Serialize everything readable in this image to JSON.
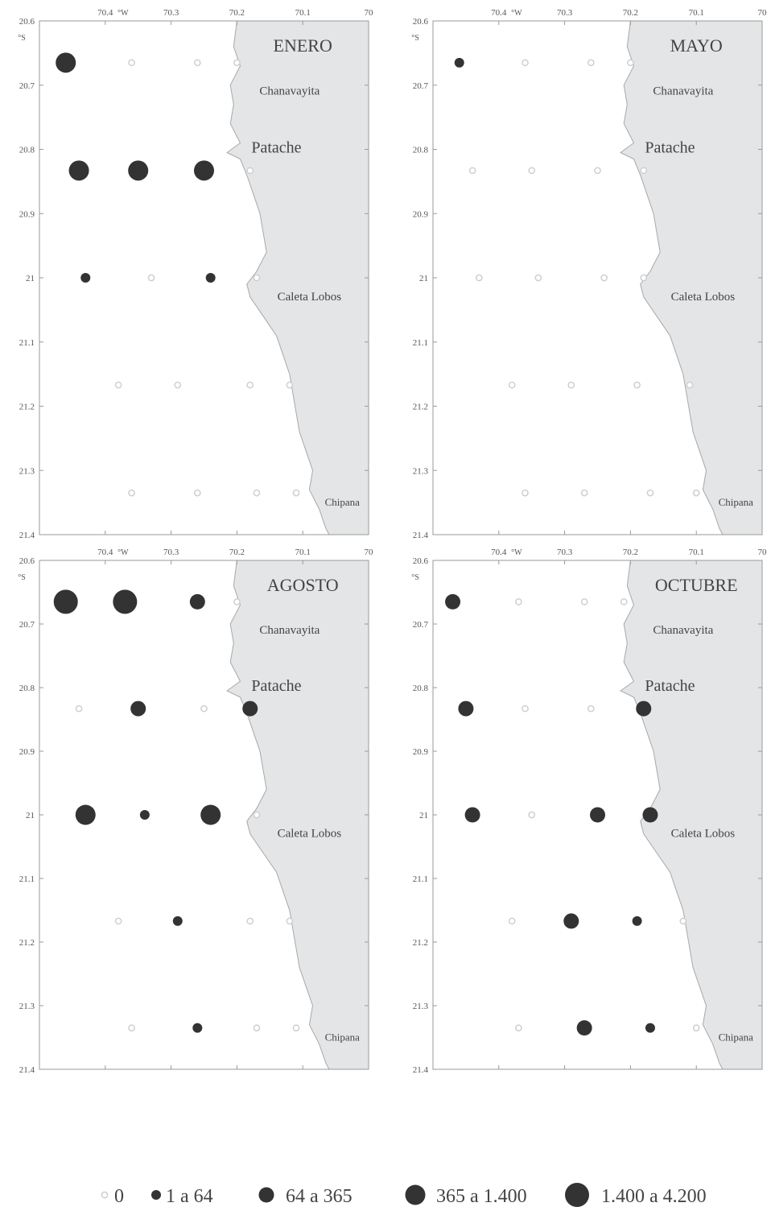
{
  "chart_data": {
    "type": "scatter",
    "description_units": {
      "x": "longitude °W",
      "y": "latitude °S"
    },
    "axes": {
      "x_ticks": [
        "70.4",
        "70.3",
        "70.2",
        "70.1",
        "70"
      ],
      "x_tick_values": [
        70.4,
        70.3,
        70.2,
        70.1,
        70.0
      ],
      "x_unit": "°W",
      "y_ticks": [
        "20.6",
        "20.7",
        "20.8",
        "20.9",
        "21",
        "21.1",
        "21.2",
        "21.3",
        "21.4"
      ],
      "y_tick_values": [
        20.6,
        20.7,
        20.8,
        20.9,
        21.0,
        21.1,
        21.2,
        21.3,
        21.4
      ],
      "y_unit": "°S",
      "xlim": [
        70.5,
        70.0
      ],
      "ylim": [
        20.6,
        21.4
      ]
    },
    "places": [
      {
        "name": "Chanavayita",
        "lon": 70.12,
        "lat": 20.715,
        "size": "normal"
      },
      {
        "name": "Patache",
        "lon": 70.14,
        "lat": 20.805,
        "size": "big"
      },
      {
        "name": "Caleta Lobos",
        "lon": 70.09,
        "lat": 21.035,
        "size": "normal"
      },
      {
        "name": "Chipana",
        "lon": 70.04,
        "lat": 21.355,
        "size": "small"
      }
    ],
    "coastline": [
      [
        70.2,
        20.6
      ],
      [
        70.205,
        20.64
      ],
      [
        70.195,
        20.67
      ],
      [
        70.21,
        20.7
      ],
      [
        70.205,
        20.73
      ],
      [
        70.21,
        20.76
      ],
      [
        70.195,
        20.79
      ],
      [
        70.215,
        20.805
      ],
      [
        70.195,
        20.815
      ],
      [
        70.185,
        20.84
      ],
      [
        70.175,
        20.87
      ],
      [
        70.165,
        20.9
      ],
      [
        70.16,
        20.93
      ],
      [
        70.155,
        20.96
      ],
      [
        70.17,
        20.99
      ],
      [
        70.185,
        21.01
      ],
      [
        70.18,
        21.03
      ],
      [
        70.16,
        21.06
      ],
      [
        70.14,
        21.09
      ],
      [
        70.13,
        21.12
      ],
      [
        70.12,
        21.15
      ],
      [
        70.115,
        21.18
      ],
      [
        70.11,
        21.21
      ],
      [
        70.105,
        21.24
      ],
      [
        70.095,
        21.27
      ],
      [
        70.085,
        21.3
      ],
      [
        70.09,
        21.33
      ],
      [
        70.075,
        21.36
      ],
      [
        70.065,
        21.39
      ],
      [
        70.06,
        21.4
      ]
    ],
    "size_classes": [
      {
        "label": "0",
        "class": 0
      },
      {
        "label": "1 a 64",
        "class": 1
      },
      {
        "label": "64 a 365",
        "class": 2
      },
      {
        "label": "365 a 1.400",
        "class": 3
      },
      {
        "label": "1.400 a 4.200",
        "class": 4
      }
    ],
    "panels": [
      {
        "title": "ENERO",
        "points": [
          {
            "lon": 70.46,
            "lat": 20.665,
            "class": 3
          },
          {
            "lon": 70.36,
            "lat": 20.665,
            "class": 0
          },
          {
            "lon": 70.26,
            "lat": 20.665,
            "class": 0
          },
          {
            "lon": 70.2,
            "lat": 20.665,
            "class": 0
          },
          {
            "lon": 70.44,
            "lat": 20.833,
            "class": 3
          },
          {
            "lon": 70.35,
            "lat": 20.833,
            "class": 3
          },
          {
            "lon": 70.25,
            "lat": 20.833,
            "class": 3
          },
          {
            "lon": 70.18,
            "lat": 20.833,
            "class": 0
          },
          {
            "lon": 70.43,
            "lat": 21.0,
            "class": 1
          },
          {
            "lon": 70.33,
            "lat": 21.0,
            "class": 0
          },
          {
            "lon": 70.24,
            "lat": 21.0,
            "class": 1
          },
          {
            "lon": 70.17,
            "lat": 21.0,
            "class": 0
          },
          {
            "lon": 70.38,
            "lat": 21.167,
            "class": 0
          },
          {
            "lon": 70.29,
            "lat": 21.167,
            "class": 0
          },
          {
            "lon": 70.18,
            "lat": 21.167,
            "class": 0
          },
          {
            "lon": 70.12,
            "lat": 21.167,
            "class": 0
          },
          {
            "lon": 70.36,
            "lat": 21.335,
            "class": 0
          },
          {
            "lon": 70.26,
            "lat": 21.335,
            "class": 0
          },
          {
            "lon": 70.17,
            "lat": 21.335,
            "class": 0
          },
          {
            "lon": 70.11,
            "lat": 21.335,
            "class": 0
          }
        ]
      },
      {
        "title": "MAYO",
        "points": [
          {
            "lon": 70.46,
            "lat": 20.665,
            "class": 1
          },
          {
            "lon": 70.36,
            "lat": 20.665,
            "class": 0
          },
          {
            "lon": 70.26,
            "lat": 20.665,
            "class": 0
          },
          {
            "lon": 70.2,
            "lat": 20.665,
            "class": 0
          },
          {
            "lon": 70.44,
            "lat": 20.833,
            "class": 0
          },
          {
            "lon": 70.35,
            "lat": 20.833,
            "class": 0
          },
          {
            "lon": 70.25,
            "lat": 20.833,
            "class": 0
          },
          {
            "lon": 70.18,
            "lat": 20.833,
            "class": 0
          },
          {
            "lon": 70.43,
            "lat": 21.0,
            "class": 0
          },
          {
            "lon": 70.34,
            "lat": 21.0,
            "class": 0
          },
          {
            "lon": 70.24,
            "lat": 21.0,
            "class": 0
          },
          {
            "lon": 70.18,
            "lat": 21.0,
            "class": 0
          },
          {
            "lon": 70.38,
            "lat": 21.167,
            "class": 0
          },
          {
            "lon": 70.29,
            "lat": 21.167,
            "class": 0
          },
          {
            "lon": 70.19,
            "lat": 21.167,
            "class": 0
          },
          {
            "lon": 70.11,
            "lat": 21.167,
            "class": 0
          },
          {
            "lon": 70.36,
            "lat": 21.335,
            "class": 0
          },
          {
            "lon": 70.27,
            "lat": 21.335,
            "class": 0
          },
          {
            "lon": 70.17,
            "lat": 21.335,
            "class": 0
          },
          {
            "lon": 70.1,
            "lat": 21.335,
            "class": 0
          }
        ]
      },
      {
        "title": "AGOSTO",
        "points": [
          {
            "lon": 70.46,
            "lat": 20.665,
            "class": 4
          },
          {
            "lon": 70.37,
            "lat": 20.665,
            "class": 4
          },
          {
            "lon": 70.26,
            "lat": 20.665,
            "class": 2
          },
          {
            "lon": 70.2,
            "lat": 20.665,
            "class": 0
          },
          {
            "lon": 70.44,
            "lat": 20.833,
            "class": 0
          },
          {
            "lon": 70.35,
            "lat": 20.833,
            "class": 2
          },
          {
            "lon": 70.25,
            "lat": 20.833,
            "class": 0
          },
          {
            "lon": 70.18,
            "lat": 20.833,
            "class": 2
          },
          {
            "lon": 70.43,
            "lat": 21.0,
            "class": 3
          },
          {
            "lon": 70.34,
            "lat": 21.0,
            "class": 1
          },
          {
            "lon": 70.24,
            "lat": 21.0,
            "class": 3
          },
          {
            "lon": 70.17,
            "lat": 21.0,
            "class": 0
          },
          {
            "lon": 70.38,
            "lat": 21.167,
            "class": 0
          },
          {
            "lon": 70.29,
            "lat": 21.167,
            "class": 1
          },
          {
            "lon": 70.18,
            "lat": 21.167,
            "class": 0
          },
          {
            "lon": 70.12,
            "lat": 21.167,
            "class": 0
          },
          {
            "lon": 70.36,
            "lat": 21.335,
            "class": 0
          },
          {
            "lon": 70.26,
            "lat": 21.335,
            "class": 1
          },
          {
            "lon": 70.17,
            "lat": 21.335,
            "class": 0
          },
          {
            "lon": 70.11,
            "lat": 21.335,
            "class": 0
          }
        ]
      },
      {
        "title": "OCTUBRE",
        "points": [
          {
            "lon": 70.47,
            "lat": 20.665,
            "class": 2
          },
          {
            "lon": 70.37,
            "lat": 20.665,
            "class": 0
          },
          {
            "lon": 70.27,
            "lat": 20.665,
            "class": 0
          },
          {
            "lon": 70.21,
            "lat": 20.665,
            "class": 0
          },
          {
            "lon": 70.45,
            "lat": 20.833,
            "class": 2
          },
          {
            "lon": 70.36,
            "lat": 20.833,
            "class": 0
          },
          {
            "lon": 70.26,
            "lat": 20.833,
            "class": 0
          },
          {
            "lon": 70.18,
            "lat": 20.833,
            "class": 2
          },
          {
            "lon": 70.44,
            "lat": 21.0,
            "class": 2
          },
          {
            "lon": 70.35,
            "lat": 21.0,
            "class": 0
          },
          {
            "lon": 70.25,
            "lat": 21.0,
            "class": 2
          },
          {
            "lon": 70.17,
            "lat": 21.0,
            "class": 2
          },
          {
            "lon": 70.38,
            "lat": 21.167,
            "class": 0
          },
          {
            "lon": 70.29,
            "lat": 21.167,
            "class": 2
          },
          {
            "lon": 70.19,
            "lat": 21.167,
            "class": 1
          },
          {
            "lon": 70.12,
            "lat": 21.167,
            "class": 0
          },
          {
            "lon": 70.37,
            "lat": 21.335,
            "class": 0
          },
          {
            "lon": 70.27,
            "lat": 21.335,
            "class": 2
          },
          {
            "lon": 70.17,
            "lat": 21.335,
            "class": 1
          },
          {
            "lon": 70.1,
            "lat": 21.335,
            "class": 0
          }
        ]
      }
    ],
    "colors": {
      "land": "#e4e5e6",
      "coast_stroke": "#a8a8a8",
      "dot_fill": "#333333",
      "zero_marker": "#cfcfcf",
      "frame": "#9a9a9a"
    }
  }
}
